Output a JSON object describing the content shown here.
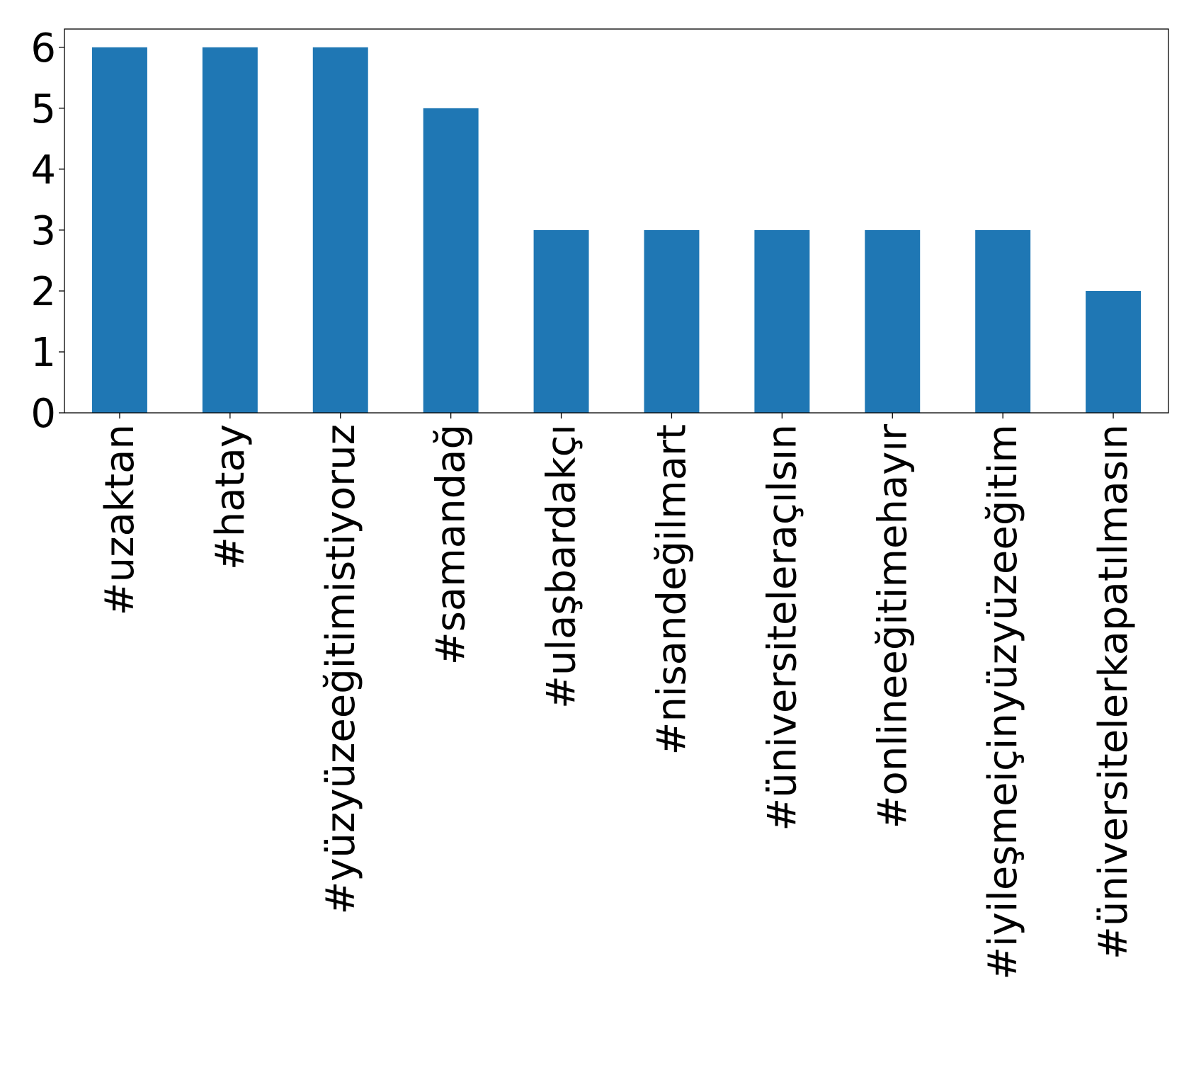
{
  "chart_data": {
    "type": "bar",
    "categories": [
      "#uzaktan",
      "#hatay",
      "#yüzyüzeeğitimistiyoruz",
      "#samandağ",
      "#ulaşbardakçı",
      "#nisandeğilmart",
      "#üniversiteleraçılsın",
      "#onlineeğitimehayır",
      "#iyileşmeiçinyüzyüzeeğitim",
      "#üniversitelerkapatılmasın"
    ],
    "values": [
      6,
      6,
      6,
      5,
      3,
      3,
      3,
      3,
      3,
      2
    ],
    "title": "",
    "xlabel": "",
    "ylabel": "",
    "ylim": [
      0,
      6.3
    ],
    "yticks": [
      0,
      1,
      2,
      3,
      4,
      5,
      6
    ],
    "bar_color": "#1f77b4",
    "grid": false,
    "legend": "none"
  }
}
